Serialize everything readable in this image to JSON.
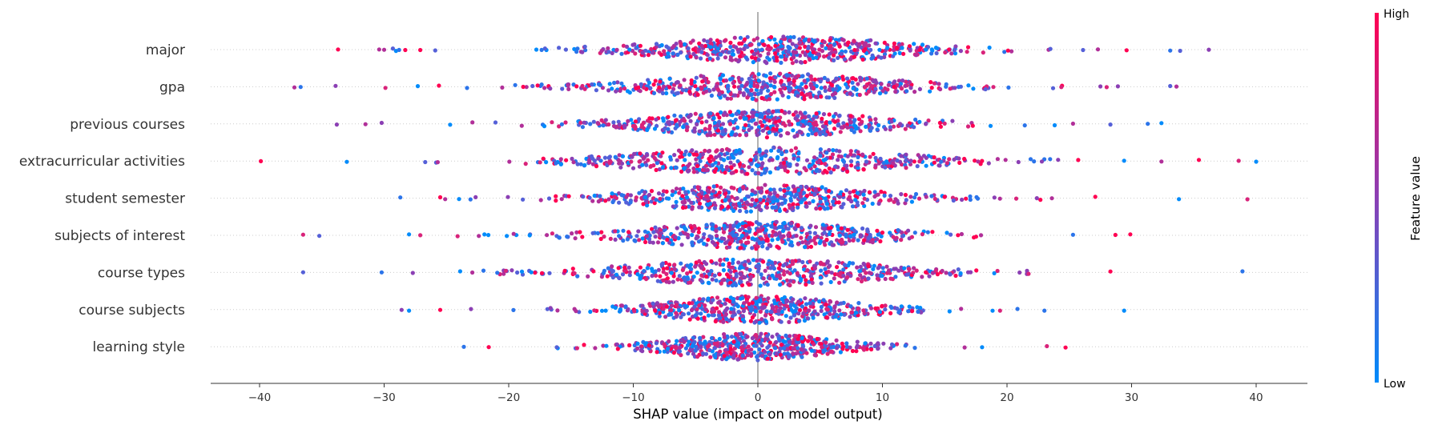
{
  "chart_data": {
    "type": "scatter",
    "subtype": "shap-beeswarm",
    "title": "",
    "xlabel": "SHAP value (impact on model output)",
    "xlim": [
      -44,
      44
    ],
    "xticks": [
      "-40",
      "-30",
      "-20",
      "-10",
      "0",
      "10",
      "20",
      "30",
      "40"
    ],
    "features": [
      "major",
      "gpa",
      "previous courses",
      "extracurricular activities",
      "student semester",
      "subjects of interest",
      "course types",
      "course subjects",
      "learning style"
    ],
    "feature_summary": [
      {
        "feature": "major",
        "min": -33.7,
        "max": 36.2,
        "center": 2.0
      },
      {
        "feature": "gpa",
        "min": -37.2,
        "max": 33.6,
        "center": 1.0
      },
      {
        "feature": "previous courses",
        "min": -33.8,
        "max": 32.4,
        "center": 0.5
      },
      {
        "feature": "extracurricular activities",
        "min": -39.9,
        "max": 40.0,
        "center": 0.5
      },
      {
        "feature": "student semester",
        "min": -28.7,
        "max": 39.3,
        "center": 0.0
      },
      {
        "feature": "subjects of interest",
        "min": -36.5,
        "max": 29.9,
        "center": 0.0
      },
      {
        "feature": "course types",
        "min": -36.5,
        "max": 38.9,
        "center": 0.0
      },
      {
        "feature": "course subjects",
        "min": -28.6,
        "max": 29.4,
        "center": 0.0
      },
      {
        "feature": "learning style",
        "min": -23.6,
        "max": 24.7,
        "center": -0.5
      }
    ],
    "outliers": [
      {
        "feature": "major",
        "x": [
          -33.7,
          -30.4,
          -30.0,
          -29.3,
          -28.8,
          -28.3,
          -27.1,
          -25.9,
          29.6,
          33.1,
          33.9,
          36.2,
          27.3,
          26.1
        ]
      },
      {
        "feature": "gpa",
        "x": [
          -37.2,
          -36.7,
          -33.9,
          -29.9,
          -27.3,
          -25.6,
          27.5,
          28.0,
          28.9,
          33.1,
          33.6
        ]
      },
      {
        "feature": "previous courses",
        "x": [
          -33.8,
          -31.5,
          -30.2,
          -24.7,
          25.3,
          28.3,
          31.3,
          32.4
        ]
      },
      {
        "feature": "extracurricular activities",
        "x": [
          -39.9,
          -33.0,
          -26.7,
          -25.7,
          24.1,
          29.4,
          32.4,
          35.4,
          38.6,
          40.0
        ]
      },
      {
        "feature": "student semester",
        "x": [
          -28.7,
          -25.5,
          -25.1,
          22.4,
          23.6,
          33.8,
          39.3
        ]
      },
      {
        "feature": "subjects of interest",
        "x": [
          -36.5,
          -35.2,
          -28.0,
          -27.1,
          -24.1,
          -22.4,
          25.3,
          28.7,
          29.9
        ]
      },
      {
        "feature": "course types",
        "x": [
          -36.5,
          -30.2,
          -23.9,
          28.3,
          38.9
        ]
      },
      {
        "feature": "course subjects",
        "x": [
          -28.6,
          -28.0,
          -25.5,
          23.0,
          29.4
        ]
      },
      {
        "feature": "learning style",
        "x": [
          -23.6,
          -21.6,
          16.6,
          18.0,
          23.2,
          24.7
        ]
      }
    ],
    "colors": {
      "low": "#008bfb",
      "high": "#ff0052",
      "mid": "#8b3fb4",
      "zero_line": "#999999",
      "grid": "#cccccc"
    },
    "colorbar": {
      "high_label": "High",
      "low_label": "Low",
      "title": "Feature value"
    },
    "grid": false,
    "legend": "colorbar-right"
  }
}
